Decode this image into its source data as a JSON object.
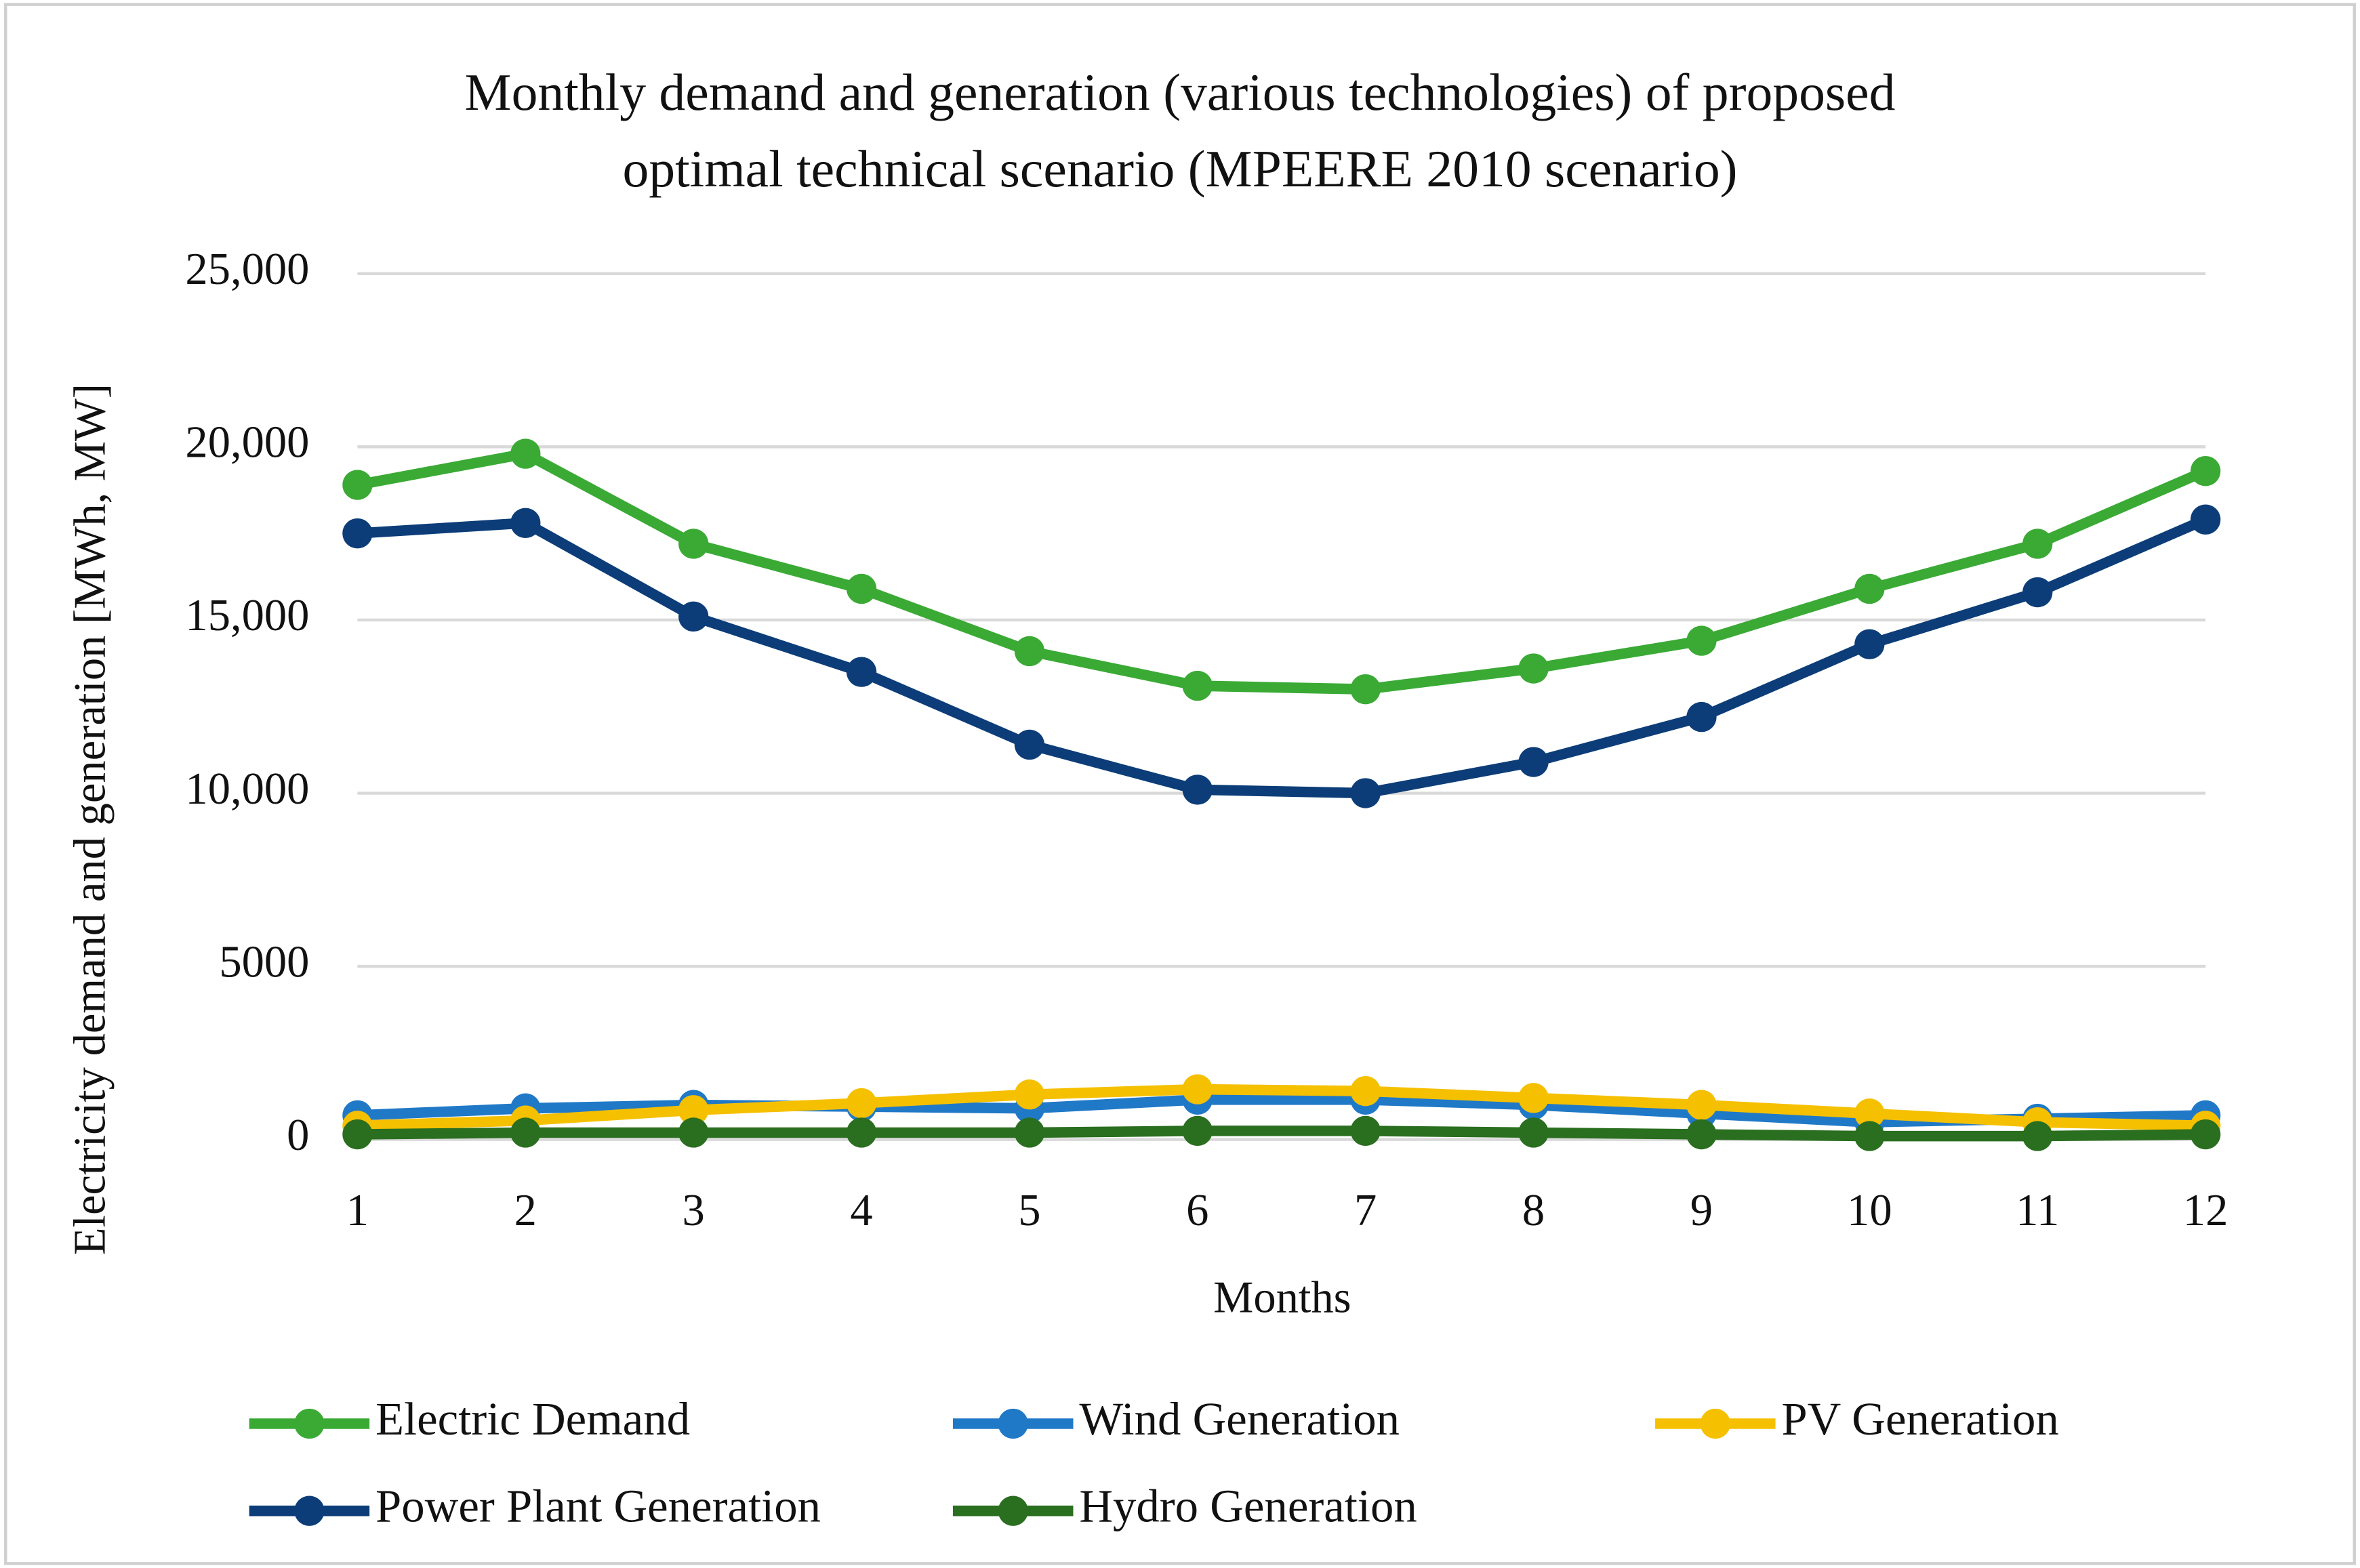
{
  "chart_data": {
    "type": "line",
    "title": [
      "Monthly demand and generation (various technologies) of proposed",
      "optimal technical scenario (MPEERE 2010 scenario)"
    ],
    "x_label": "Months",
    "y_label": "Electricity demand and generation [MWh, MW]",
    "categories": [
      "1",
      "2",
      "3",
      "4",
      "5",
      "6",
      "7",
      "8",
      "9",
      "10",
      "11",
      "12"
    ],
    "ylim": [
      0,
      25000
    ],
    "yticks": [
      0,
      5000,
      {
        "value": 10000,
        "label": "10,000"
      },
      {
        "value": 15000,
        "label": "15,000"
      },
      {
        "value": 20000,
        "label": "20,000"
      },
      {
        "value": 25000,
        "label": "25,000"
      }
    ],
    "grid": true,
    "legend": "bottom",
    "series": [
      {
        "name": "Electric Demand",
        "color": "#3aaa35",
        "values": [
          18900,
          19800,
          17200,
          15900,
          14100,
          13100,
          13000,
          13600,
          14400,
          15900,
          17200,
          19300
        ]
      },
      {
        "name": "Wind Generation",
        "color": "#2079c7",
        "values": [
          700,
          900,
          1000,
          950,
          900,
          1150,
          1150,
          1000,
          750,
          500,
          600,
          700
        ]
      },
      {
        "name": "PV Generation",
        "color": "#f5c000",
        "values": [
          400,
          550,
          850,
          1050,
          1300,
          1450,
          1400,
          1200,
          1000,
          750,
          500,
          400
        ]
      },
      {
        "name": "Power Plant Generation",
        "color": "#0c3d78",
        "values": [
          17500,
          17800,
          15100,
          13500,
          11400,
          10100,
          10000,
          10900,
          12200,
          14300,
          15800,
          17900
        ]
      },
      {
        "name": "Hydro Generation",
        "color": "#2a6e1f",
        "values": [
          150,
          200,
          200,
          200,
          200,
          250,
          250,
          200,
          150,
          100,
          100,
          150
        ]
      }
    ]
  }
}
